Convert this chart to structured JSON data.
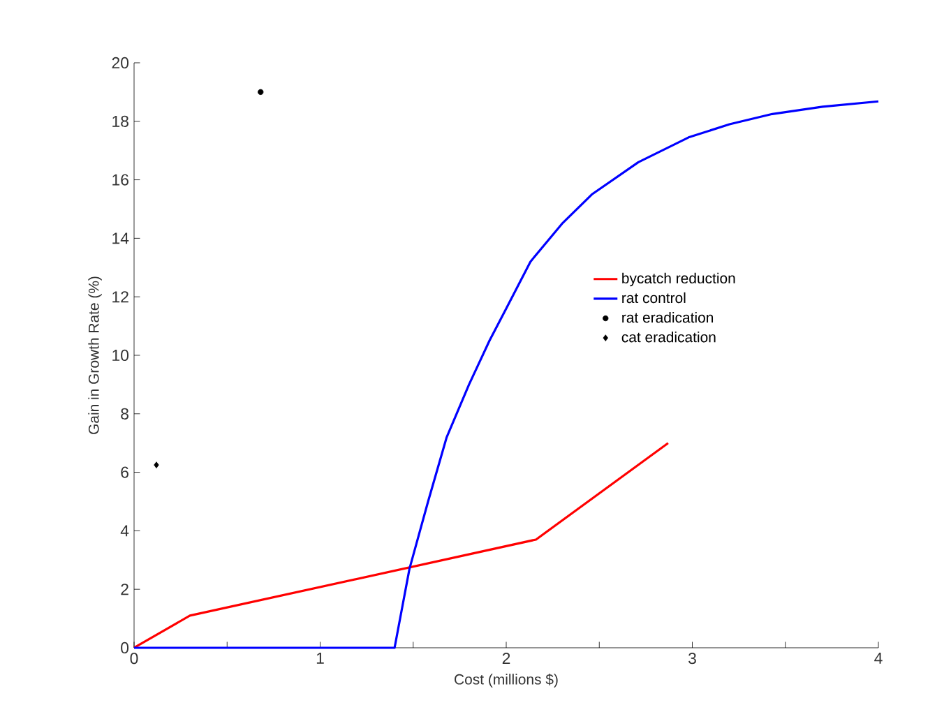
{
  "chart_data": {
    "type": "line",
    "xlabel": "Cost (millions $)",
    "ylabel": "Gain in Growth Rate (%)",
    "xlim": [
      0,
      4
    ],
    "ylim": [
      0,
      20
    ],
    "xticks": [
      0,
      {
        "value": 0.5,
        "label": null
      },
      1,
      {
        "value": 1.5,
        "label": null
      },
      2,
      {
        "value": 2.5,
        "label": null
      },
      3,
      {
        "value": 3.5,
        "label": null
      },
      4
    ],
    "yticks": [
      0,
      2,
      4,
      6,
      8,
      10,
      12,
      14,
      16,
      18,
      20
    ],
    "grid": false,
    "legend": "right",
    "series": [
      {
        "name": "bycatch reduction",
        "color": "#ff0000",
        "x": [
          0,
          0.3,
          2.16,
          2.87
        ],
        "values": [
          0,
          1.1,
          3.7,
          7.0
        ]
      },
      {
        "name": "rat control",
        "color": "#0000ff",
        "x": [
          0,
          1.4,
          1.48,
          1.58,
          1.68,
          1.8,
          1.91,
          2.0,
          2.13,
          2.3,
          2.46,
          2.71,
          2.98,
          3.2,
          3.43,
          3.7,
          4.0
        ],
        "values": [
          0,
          0,
          2.7,
          5.0,
          7.2,
          9.0,
          10.5,
          11.6,
          13.2,
          14.5,
          15.5,
          16.6,
          17.45,
          17.9,
          18.25,
          18.5,
          18.68
        ]
      },
      {
        "name": "rat eradication",
        "color": "#000000",
        "type": "scatter",
        "marker": "circle",
        "x": [
          0.68
        ],
        "values": [
          19.0
        ]
      },
      {
        "name": "cat eradication",
        "color": "#000000",
        "type": "scatter",
        "marker": "diamond",
        "x": [
          0.12
        ],
        "values": [
          6.25
        ]
      }
    ]
  }
}
